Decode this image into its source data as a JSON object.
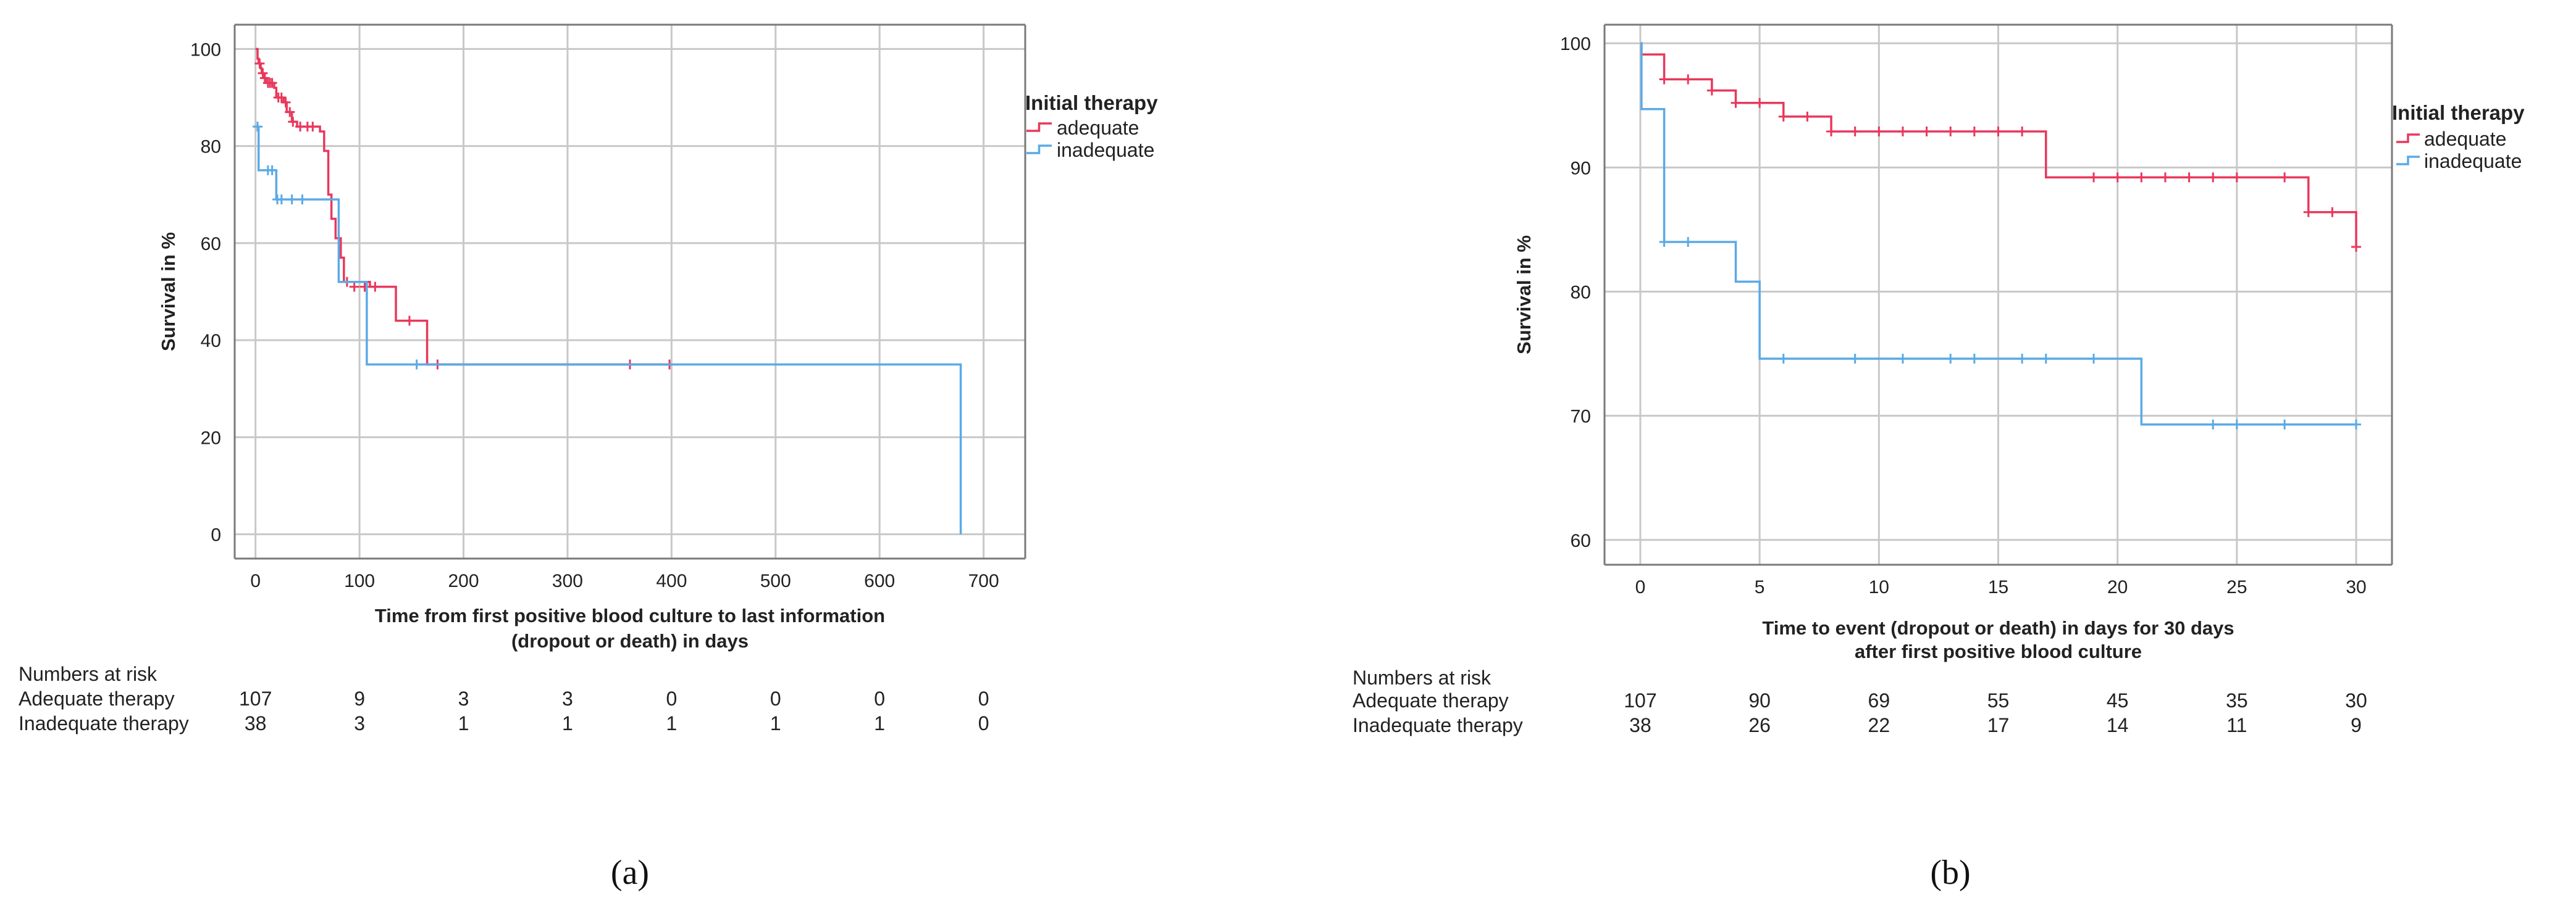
{
  "colors": {
    "adequate": "#e8385c",
    "inadequate": "#5aaae6"
  },
  "chart_data": [
    {
      "panel": "a",
      "panel_label": "(a)",
      "type": "line",
      "title": "",
      "xlabel": [
        "Time from first positive blood culture to last information",
        "(dropout or death) in days"
      ],
      "ylabel": "Survival in %",
      "xlim": [
        -20,
        740
      ],
      "ylim": [
        -5,
        105
      ],
      "xticks": [
        0,
        100,
        200,
        300,
        400,
        500,
        600,
        700
      ],
      "yticks": [
        0,
        20,
        40,
        60,
        80,
        100
      ],
      "legend": {
        "title": "Initial therapy",
        "position": "right",
        "entries": [
          "adequate",
          "inadequate"
        ]
      },
      "series": [
        {
          "name": "adequate",
          "steps": [
            [
              0,
              100
            ],
            [
              2,
              98
            ],
            [
              3,
              97
            ],
            [
              5,
              96
            ],
            [
              6,
              95
            ],
            [
              8,
              94
            ],
            [
              10,
              93
            ],
            [
              18,
              92
            ],
            [
              20,
              90
            ],
            [
              27,
              89
            ],
            [
              30,
              87
            ],
            [
              35,
              85
            ],
            [
              40,
              84
            ],
            [
              62,
              83
            ],
            [
              66,
              79
            ],
            [
              70,
              70
            ],
            [
              73,
              65
            ],
            [
              77,
              61
            ],
            [
              82,
              57
            ],
            [
              85,
              52
            ],
            [
              110,
              51
            ],
            [
              135,
              44
            ],
            [
              165,
              35
            ],
            [
              400,
              35
            ]
          ],
          "censored": [
            [
              4,
              97
            ],
            [
              7,
              95
            ],
            [
              9,
              94
            ],
            [
              12,
              93
            ],
            [
              14,
              93
            ],
            [
              16,
              93
            ],
            [
              22,
              90
            ],
            [
              25,
              90
            ],
            [
              29,
              89
            ],
            [
              33,
              87
            ],
            [
              36,
              85
            ],
            [
              43,
              84
            ],
            [
              50,
              84
            ],
            [
              55,
              84
            ],
            [
              88,
              52
            ],
            [
              95,
              51
            ],
            [
              105,
              51
            ],
            [
              115,
              51
            ],
            [
              148,
              44
            ],
            [
              175,
              35
            ],
            [
              360,
              35
            ],
            [
              398,
              35
            ]
          ]
        },
        {
          "name": "inadequate",
          "steps": [
            [
              0,
              84
            ],
            [
              3,
              75
            ],
            [
              20,
              69
            ],
            [
              80,
              52
            ],
            [
              107,
              35
            ],
            [
              678,
              35
            ],
            [
              678,
              0
            ]
          ],
          "censored": [
            [
              2,
              84
            ],
            [
              12,
              75
            ],
            [
              16,
              75
            ],
            [
              21,
              69
            ],
            [
              25,
              69
            ],
            [
              35,
              69
            ],
            [
              45,
              69
            ],
            [
              155,
              35
            ]
          ]
        }
      ],
      "risk_table": {
        "header": "Numbers at risk",
        "rows": [
          {
            "label": "Adequate therapy",
            "values": [
              "107",
              "9",
              "3",
              "3",
              "0",
              "0",
              "0",
              "0"
            ]
          },
          {
            "label": "Inadequate therapy",
            "values": [
              "38",
              "3",
              "1",
              "1",
              "1",
              "1",
              "1",
              "0"
            ]
          }
        ]
      }
    },
    {
      "panel": "b",
      "panel_label": "(b)",
      "type": "line",
      "title": "",
      "xlabel": [
        "Time to event (dropout or death) in days for 30 days",
        "after first positive blood culture"
      ],
      "ylabel": "Survival in %",
      "xlim": [
        -1.5,
        31.5
      ],
      "ylim": [
        58,
        101.5
      ],
      "xticks": [
        0,
        5,
        10,
        15,
        20,
        25,
        30
      ],
      "yticks": [
        60,
        70,
        80,
        90,
        100
      ],
      "legend": {
        "title": "Initial therapy",
        "position": "right",
        "entries": [
          "adequate",
          "inadequate"
        ]
      },
      "series": [
        {
          "name": "adequate",
          "steps": [
            [
              0,
              100
            ],
            [
              0.05,
              99.1
            ],
            [
              1,
              97.1
            ],
            [
              3,
              96.2
            ],
            [
              4,
              95.2
            ],
            [
              6,
              94.1
            ],
            [
              8,
              92.9
            ],
            [
              17,
              89.2
            ],
            [
              28,
              86.4
            ],
            [
              30,
              83.6
            ]
          ],
          "censored": [
            [
              1,
              97.1
            ],
            [
              2,
              97.1
            ],
            [
              3,
              96.2
            ],
            [
              4,
              95.2
            ],
            [
              5,
              95.2
            ],
            [
              6,
              94.1
            ],
            [
              7,
              94.1
            ],
            [
              8,
              92.9
            ],
            [
              9,
              92.9
            ],
            [
              10,
              92.9
            ],
            [
              11,
              92.9
            ],
            [
              12,
              92.9
            ],
            [
              13,
              92.9
            ],
            [
              14,
              92.9
            ],
            [
              15,
              92.9
            ],
            [
              16,
              92.9
            ],
            [
              19,
              89.2
            ],
            [
              20,
              89.2
            ],
            [
              21,
              89.2
            ],
            [
              22,
              89.2
            ],
            [
              23,
              89.2
            ],
            [
              24,
              89.2
            ],
            [
              25,
              89.2
            ],
            [
              27,
              89.2
            ],
            [
              28,
              86.4
            ],
            [
              29,
              86.4
            ],
            [
              30,
              83.6
            ]
          ]
        },
        {
          "name": "inadequate",
          "steps": [
            [
              0,
              100
            ],
            [
              0.05,
              94.7
            ],
            [
              1,
              84
            ],
            [
              4,
              80.8
            ],
            [
              5,
              74.6
            ],
            [
              21,
              69.3
            ],
            [
              30,
              69.3
            ]
          ],
          "censored": [
            [
              1,
              84
            ],
            [
              2,
              84
            ],
            [
              6,
              74.6
            ],
            [
              9,
              74.6
            ],
            [
              11,
              74.6
            ],
            [
              13,
              74.6
            ],
            [
              14,
              74.6
            ],
            [
              16,
              74.6
            ],
            [
              17,
              74.6
            ],
            [
              19,
              74.6
            ],
            [
              24,
              69.3
            ],
            [
              25,
              69.3
            ],
            [
              27,
              69.3
            ],
            [
              30,
              69.3
            ]
          ]
        }
      ],
      "risk_table": {
        "header": "Numbers at risk",
        "rows": [
          {
            "label": "Adequate therapy",
            "values": [
              "107",
              "90",
              "69",
              "55",
              "45",
              "35",
              "30"
            ]
          },
          {
            "label": "Inadequate therapy",
            "values": [
              "38",
              "26",
              "22",
              "17",
              "14",
              "11",
              "9"
            ]
          }
        ]
      }
    }
  ]
}
